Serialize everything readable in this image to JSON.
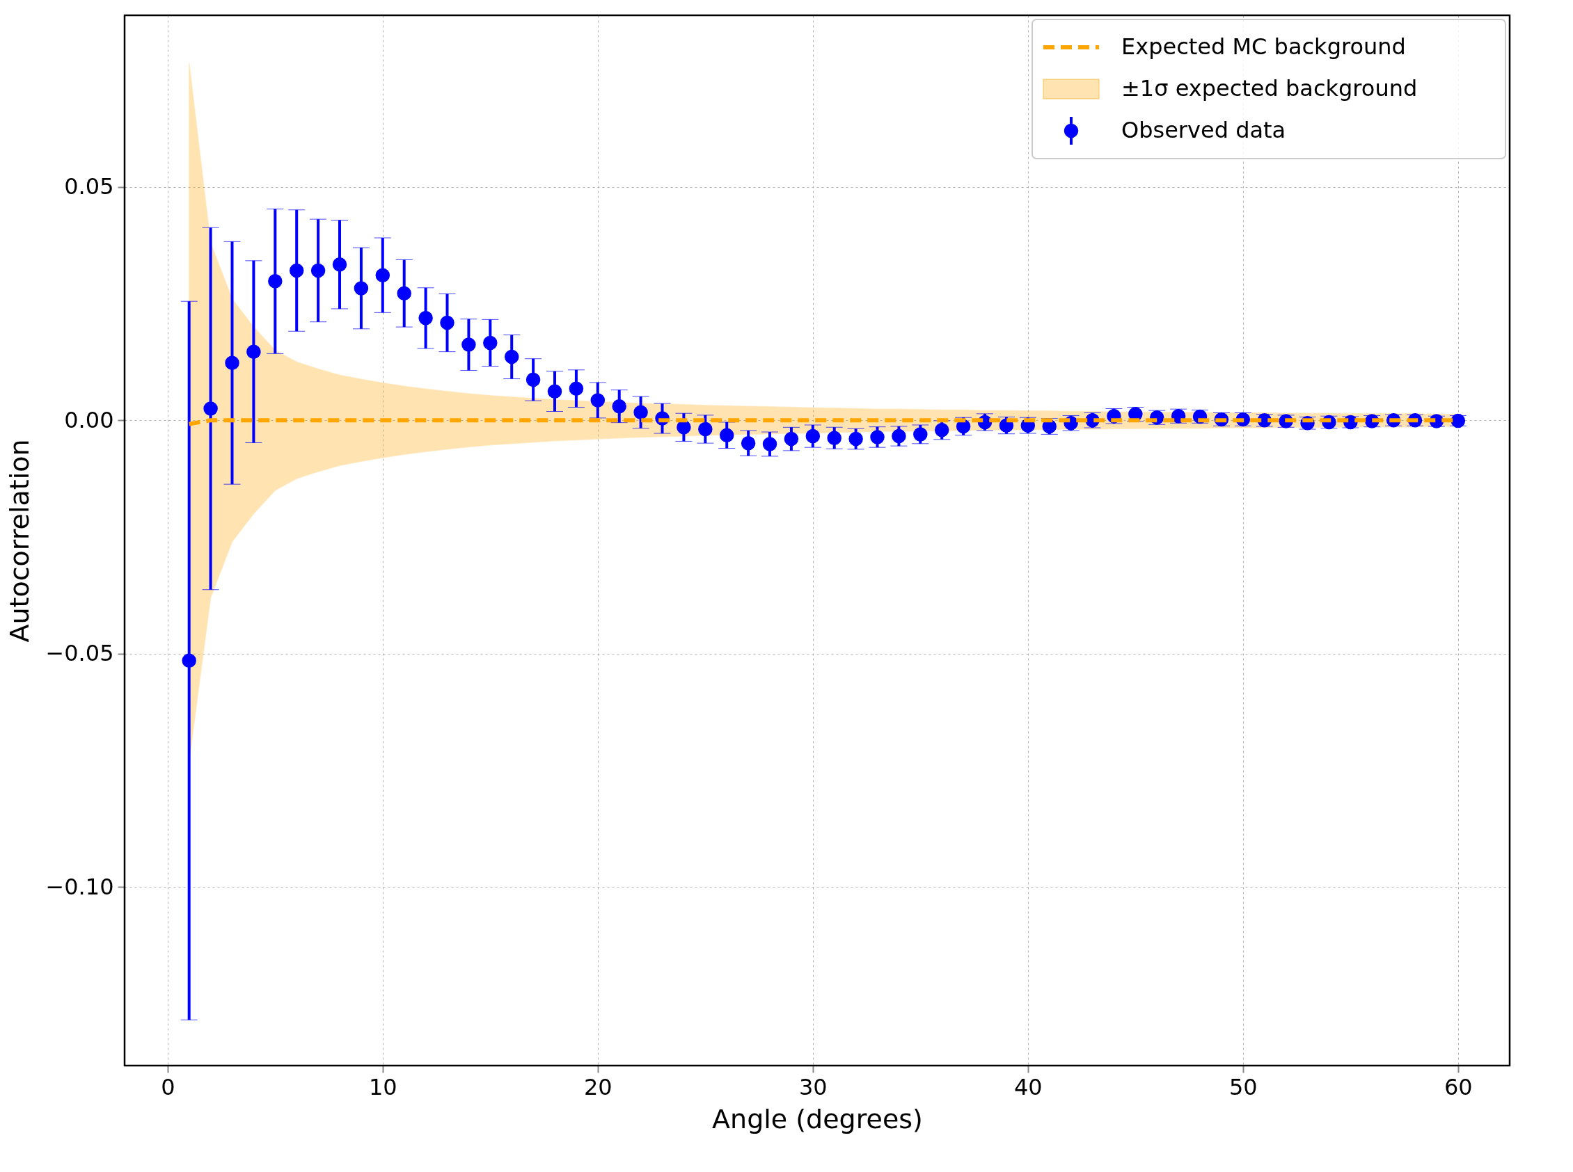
{
  "chart_data": {
    "type": "scatter",
    "xlabel": "Angle (degrees)",
    "ylabel": "Autocorrelation",
    "x": [
      1,
      2,
      3,
      4,
      5,
      6,
      7,
      8,
      9,
      10,
      11,
      12,
      13,
      14,
      15,
      16,
      17,
      18,
      19,
      20,
      21,
      22,
      23,
      24,
      25,
      26,
      27,
      28,
      29,
      30,
      31,
      32,
      33,
      34,
      35,
      36,
      37,
      38,
      39,
      40,
      41,
      42,
      43,
      44,
      45,
      46,
      47,
      48,
      49,
      50,
      51,
      52,
      53,
      54,
      55,
      56,
      57,
      58,
      59,
      60
    ],
    "series": [
      {
        "name": "Expected MC background",
        "type": "line",
        "color": "#ffa500",
        "line_style": "dashed",
        "marker": "none",
        "values": [
          -0.0008,
          0,
          0,
          0,
          0,
          0,
          0,
          0,
          0,
          0,
          0,
          0,
          0,
          0,
          0,
          0,
          0,
          0,
          0,
          0,
          0,
          0,
          0,
          0,
          0,
          0,
          0,
          0,
          0,
          0,
          0,
          0,
          0,
          0,
          0,
          0,
          0,
          0,
          0,
          0,
          0,
          0,
          0,
          0,
          0,
          0,
          0,
          0,
          0,
          0,
          0,
          0,
          0,
          0,
          0,
          0,
          0,
          0,
          0,
          0
        ]
      },
      {
        "name": "±1σ expected background",
        "type": "area",
        "color": "#ffa500",
        "values": [
          null,
          null,
          null,
          null,
          null,
          null,
          null,
          null,
          null,
          null,
          null,
          null,
          null,
          null,
          null,
          null,
          null,
          null,
          null,
          null,
          null,
          null,
          null,
          null,
          null,
          null,
          null,
          null,
          null,
          null,
          null,
          null,
          null,
          null,
          null,
          null,
          null,
          null,
          null,
          null,
          null,
          null,
          null,
          null,
          null,
          null,
          null,
          null,
          null,
          null,
          null,
          null,
          null,
          null,
          null,
          null,
          null,
          null,
          null,
          null
        ],
        "lower": [
          -0.073,
          -0.038,
          -0.026,
          -0.02,
          -0.015,
          -0.0125,
          -0.011,
          -0.0097,
          -0.0088,
          -0.008,
          -0.0073,
          -0.0067,
          -0.0062,
          -0.0057,
          -0.0053,
          -0.005,
          -0.0047,
          -0.0044,
          -0.0042,
          -0.004,
          -0.0038,
          -0.0036,
          -0.0035,
          -0.0034,
          -0.0032,
          -0.0031,
          -0.003,
          -0.0029,
          -0.0028,
          -0.0027,
          -0.0026,
          -0.0025,
          -0.0024,
          -0.0024,
          -0.0023,
          -0.0022,
          -0.0022,
          -0.0021,
          -0.0021,
          -0.002,
          -0.002,
          -0.0019,
          -0.0019,
          -0.0018,
          -0.0018,
          -0.0017,
          -0.0017,
          -0.0017,
          -0.0016,
          -0.0016,
          -0.0016,
          -0.0015,
          -0.0015,
          -0.0015,
          -0.0014,
          -0.0014,
          -0.0014,
          -0.0014,
          -0.0013,
          -0.0013
        ],
        "upper": [
          0.0766,
          0.038,
          0.026,
          0.02,
          0.015,
          0.0125,
          0.011,
          0.0097,
          0.0088,
          0.008,
          0.0073,
          0.0067,
          0.0062,
          0.0057,
          0.0053,
          0.005,
          0.0047,
          0.0044,
          0.0042,
          0.004,
          0.0038,
          0.0036,
          0.0035,
          0.0034,
          0.0032,
          0.0031,
          0.003,
          0.0029,
          0.0028,
          0.0027,
          0.0026,
          0.0025,
          0.0024,
          0.0024,
          0.0023,
          0.0022,
          0.0022,
          0.0021,
          0.0021,
          0.002,
          0.002,
          0.0019,
          0.0019,
          0.0018,
          0.0018,
          0.0017,
          0.0017,
          0.0017,
          0.0016,
          0.0016,
          0.0016,
          0.0015,
          0.0015,
          0.0015,
          0.0014,
          0.0014,
          0.0014,
          0.0014,
          0.0013,
          0.0013
        ]
      },
      {
        "name": "Observed data",
        "type": "scatter",
        "color": "#0000ff",
        "marker": "circle",
        "values": [
          -0.0515,
          0.0025,
          0.0123,
          0.0147,
          0.0298,
          0.0321,
          0.0321,
          0.0334,
          0.0283,
          0.0311,
          0.0272,
          0.0219,
          0.0209,
          0.0162,
          0.0166,
          0.0136,
          0.0087,
          0.0062,
          0.0068,
          0.0043,
          0.003,
          0.0017,
          0.0004,
          -0.0015,
          -0.0019,
          -0.0032,
          -0.0049,
          -0.0051,
          -0.004,
          -0.0034,
          -0.0038,
          -0.004,
          -0.0036,
          -0.0034,
          -0.003,
          -0.0021,
          -0.0013,
          -0.0004,
          -0.0011,
          -0.0011,
          -0.0013,
          -0.0006,
          0,
          0.0009,
          0.0013,
          0.0006,
          0.0009,
          0.0008,
          0.0002,
          0.0002,
          0,
          -0.0002,
          -0.0006,
          -0.0004,
          -0.0004,
          -0.0002,
          0,
          0,
          -0.0002,
          -0.0001
        ],
        "errors": [
          0.077,
          0.0388,
          0.026,
          0.0195,
          0.0155,
          0.013,
          0.011,
          0.0095,
          0.0087,
          0.008,
          0.0072,
          0.0065,
          0.0062,
          0.0055,
          0.005,
          0.0047,
          0.0045,
          0.0043,
          0.004,
          0.0038,
          0.0035,
          0.0034,
          0.0032,
          0.003,
          0.003,
          0.0028,
          0.0027,
          0.0026,
          0.0025,
          0.0024,
          0.0023,
          0.0022,
          0.0022,
          0.0021,
          0.002,
          0.002,
          0.0019,
          0.0018,
          0.0018,
          0.0017,
          0.0017,
          0.0016,
          0.0016,
          0.0016,
          0.0015,
          0.0015,
          0.0015,
          0.0014,
          0.0014,
          0.0014,
          0.0013,
          0.0013,
          0.0013,
          0.0013,
          0.0012,
          0.0012,
          0.0012,
          0.0012,
          0.0011,
          0.0011
        ]
      }
    ],
    "xlim": [
      -2,
      62.4
    ],
    "ylim": [
      -0.1383,
      0.0868
    ],
    "xticks": [
      0,
      10,
      20,
      30,
      40,
      50,
      60
    ],
    "yticks": [
      {
        "value": -0.1,
        "label": "−0.10"
      },
      {
        "value": -0.05,
        "label": "−0.05"
      },
      {
        "value": 0,
        "label": "0.00"
      },
      {
        "value": 0.05,
        "label": "0.05"
      }
    ],
    "grid": true,
    "legend": "top right"
  }
}
